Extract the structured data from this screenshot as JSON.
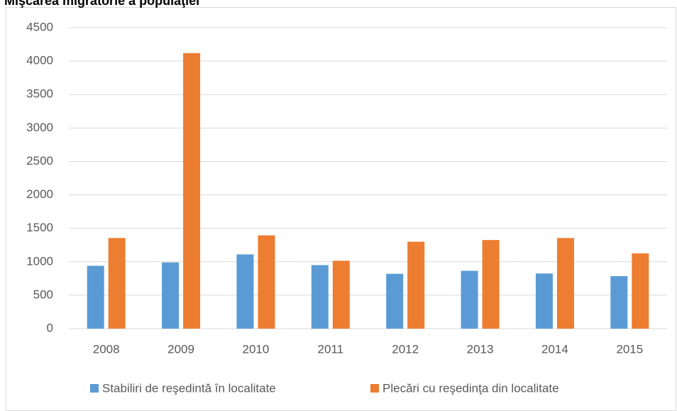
{
  "chart_data": {
    "type": "bar",
    "title": "Mişcarea migratorie a populaţiei",
    "categories": [
      "2008",
      "2009",
      "2010",
      "2011",
      "2012",
      "2013",
      "2014",
      "2015"
    ],
    "series": [
      {
        "name": "Stabiliri de reşedintă în localitate",
        "color": "#5b9bd5",
        "values": [
          940,
          990,
          1110,
          950,
          820,
          865,
          825,
          785
        ]
      },
      {
        "name": "Plecări cu reşedinţa din localitate",
        "color": "#ed7d31",
        "values": [
          1355,
          4120,
          1395,
          1015,
          1300,
          1325,
          1355,
          1125
        ]
      }
    ],
    "ylim": [
      0,
      4500
    ],
    "yticks": [
      0,
      500,
      1000,
      1500,
      2000,
      2500,
      3000,
      3500,
      4000,
      4500
    ],
    "grid": true,
    "legend": "bottom"
  }
}
